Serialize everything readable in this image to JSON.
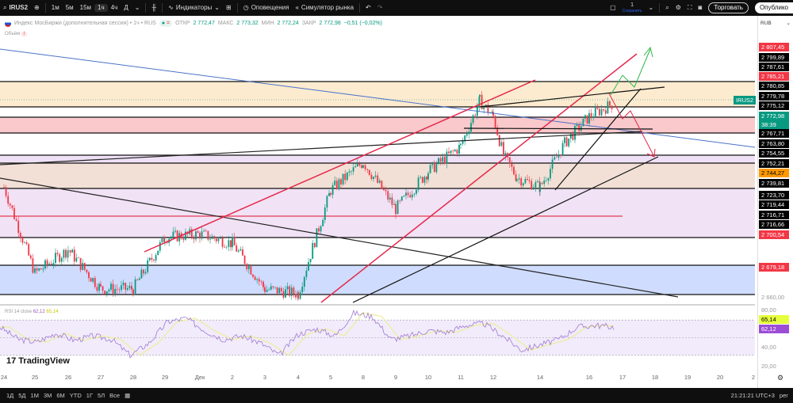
{
  "toolbar": {
    "symbol": "IRUS2",
    "intervals": [
      "1м",
      "5м",
      "15м",
      "1ч",
      "4ч",
      "Д"
    ],
    "active_interval": "1ч",
    "indicators": "Индикаторы",
    "alerts": "Оповещения",
    "replay": "Симулятор рынка",
    "layout_count": "1",
    "save": "Сохранить",
    "trade": "Торговать",
    "publish": "Опублико"
  },
  "legend": {
    "title": "Индекс МосБиржи (дополнительная сессия) • 1ч • RUS",
    "open_label": "ОТКР",
    "open": "2 772,47",
    "high_label": "МАКС",
    "high": "2 773,32",
    "low_label": "МИН",
    "low": "2 772,24",
    "close_label": "ЗАКР",
    "close": "2 772,98",
    "change": "−0,51 (−0,02%)",
    "volume": "Объём"
  },
  "rsi": {
    "label": "RSI 14 close",
    "value": "62,12",
    "ma": "65,14",
    "ticks": [
      "80,00",
      "40,00",
      "20,00"
    ]
  },
  "price_axis": {
    "currency": "RUB",
    "labels": [
      {
        "t": "2 807,45",
        "k": "red"
      },
      {
        "t": "2 799,89",
        "k": "blk"
      },
      {
        "t": "2 787,61",
        "k": "blk"
      },
      {
        "t": "2 785,21",
        "k": "red"
      },
      {
        "t": "2 780,85",
        "k": "blk"
      },
      {
        "t": "2 779,78",
        "k": "blk"
      },
      {
        "t": "2 775,12",
        "k": "blk"
      },
      {
        "t": "2 772,98",
        "k": "grn"
      },
      {
        "t": "38:39",
        "k": "grn"
      },
      {
        "t": "2 767,71",
        "k": "blk"
      },
      {
        "t": "2 763,80",
        "k": "blk"
      },
      {
        "t": "2 754,55",
        "k": "blk"
      },
      {
        "t": "2 752,21",
        "k": "blk"
      },
      {
        "t": "2 744,27",
        "k": "org"
      },
      {
        "t": "2 739,81",
        "k": "blk"
      },
      {
        "t": "2 723,70",
        "k": "blk"
      },
      {
        "t": "2 719,44",
        "k": "blk"
      },
      {
        "t": "2 716,71",
        "k": "blk"
      },
      {
        "t": "2 716,66",
        "k": "blk"
      },
      {
        "t": "2 700,54",
        "k": "red"
      },
      {
        "t": "2 679,18",
        "k": "red"
      },
      {
        "t": "2 660,00",
        "k": "plain"
      }
    ]
  },
  "symbol_tag": "IRUS2",
  "dates": [
    "24",
    "25",
    "26",
    "27",
    "28",
    "29",
    "Дек",
    "2",
    "3",
    "4",
    "5",
    "8",
    "9",
    "10",
    "11",
    "12",
    "14",
    "16",
    "17",
    "18",
    "19",
    "20",
    "2"
  ],
  "ranges": [
    "1Д",
    "5Д",
    "1М",
    "3М",
    "6М",
    "YTD",
    "1Г",
    "5Л",
    "Все"
  ],
  "clock": "21:21:21 UTC+3",
  "adj": "рег",
  "logo": "TradingView",
  "chart_data": {
    "type": "candlestick",
    "approx_close_path": [
      [
        "24",
        2720
      ],
      [
        "25",
        2665
      ],
      [
        "26",
        2680
      ],
      [
        "27",
        2655
      ],
      [
        "28",
        2655
      ],
      [
        "29",
        2688
      ],
      [
        "Дек",
        2690
      ],
      [
        "2",
        2684
      ],
      [
        "3",
        2655
      ],
      [
        "4",
        2652
      ],
      [
        "5",
        2718
      ],
      [
        "8",
        2736
      ],
      [
        "9",
        2706
      ],
      [
        "10",
        2730
      ],
      [
        "11",
        2746
      ],
      [
        "11.5",
        2775
      ],
      [
        "12",
        2765
      ],
      [
        "12.3",
        2740
      ],
      [
        "13",
        2726
      ],
      [
        "14",
        2720
      ],
      [
        "15",
        2748
      ],
      [
        "16",
        2765
      ],
      [
        "16.7",
        2773
      ]
    ],
    "rsi_path": [
      62,
      48,
      45,
      55,
      47,
      52,
      48,
      30,
      44,
      68,
      72,
      58,
      48,
      52,
      44,
      30,
      54,
      60,
      52,
      78,
      74,
      48,
      52,
      58,
      56,
      64,
      66,
      52,
      36,
      42,
      48,
      62,
      64,
      62
    ]
  }
}
